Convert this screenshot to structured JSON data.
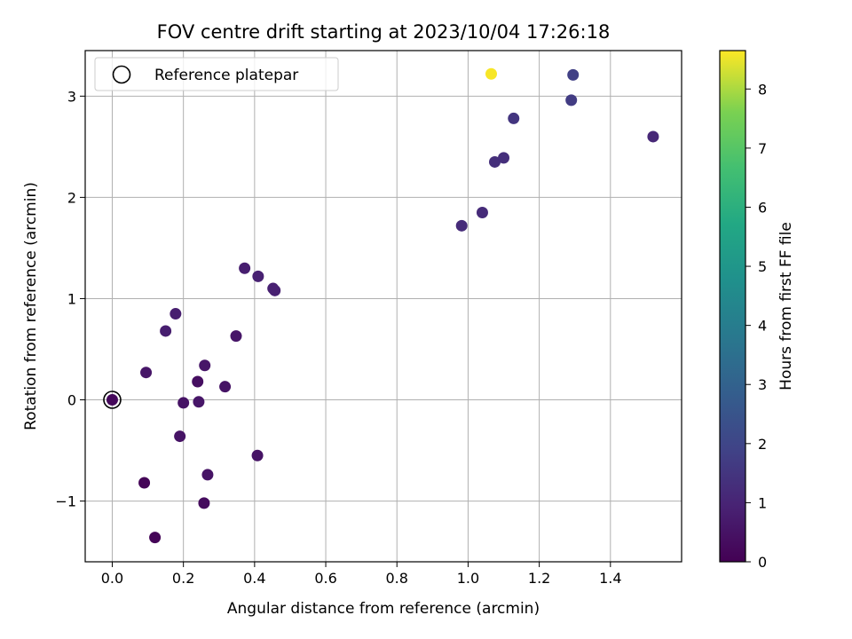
{
  "chart_data": {
    "type": "scatter",
    "title": "FOV centre drift starting at 2023/10/04 17:26:18",
    "xlabel": "Angular distance from reference (arcmin)",
    "ylabel": "Rotation from reference (arcmin)",
    "xlim": [
      -0.076,
      1.6
    ],
    "ylim": [
      -1.6,
      3.45
    ],
    "xticks": [
      0.0,
      0.2,
      0.4,
      0.6,
      0.8,
      1.0,
      1.2,
      1.4
    ],
    "xtick_labels": [
      "0.0",
      "0.2",
      "0.4",
      "0.6",
      "0.8",
      "1.0",
      "1.2",
      "1.4"
    ],
    "yticks": [
      -1,
      0,
      1,
      2,
      3
    ],
    "ytick_labels": [
      "−1",
      "0",
      "1",
      "2",
      "3"
    ],
    "grid": true,
    "legend": {
      "position": "top-left",
      "entries": [
        "Reference platepar"
      ]
    },
    "colorbar": {
      "label": "Hours from first FF file",
      "colormap": "viridis",
      "range": [
        0,
        8.65
      ],
      "ticks": [
        0,
        1,
        2,
        3,
        4,
        5,
        6,
        7,
        8
      ],
      "tick_labels": [
        "0",
        "1",
        "2",
        "3",
        "4",
        "5",
        "6",
        "7",
        "8"
      ]
    },
    "reference": {
      "x": 0.0,
      "y": 0.0
    },
    "points": [
      {
        "x": 0.0,
        "y": 0.0,
        "c": 0.2
      },
      {
        "x": 0.09,
        "y": -0.82,
        "c": 0.1
      },
      {
        "x": 0.12,
        "y": -1.36,
        "c": 0.1
      },
      {
        "x": 0.095,
        "y": 0.27,
        "c": 0.6
      },
      {
        "x": 0.15,
        "y": 0.68,
        "c": 0.8
      },
      {
        "x": 0.178,
        "y": 0.85,
        "c": 0.8
      },
      {
        "x": 0.19,
        "y": -0.36,
        "c": 0.5
      },
      {
        "x": 0.2,
        "y": -0.03,
        "c": 0.5
      },
      {
        "x": 0.24,
        "y": 0.18,
        "c": 0.4
      },
      {
        "x": 0.243,
        "y": -0.02,
        "c": 0.6
      },
      {
        "x": 0.26,
        "y": 0.34,
        "c": 0.6
      },
      {
        "x": 0.258,
        "y": -1.02,
        "c": 0.3
      },
      {
        "x": 0.268,
        "y": -0.74,
        "c": 0.5
      },
      {
        "x": 0.317,
        "y": 0.13,
        "c": 0.5
      },
      {
        "x": 0.348,
        "y": 0.63,
        "c": 0.6
      },
      {
        "x": 0.372,
        "y": 1.3,
        "c": 0.8
      },
      {
        "x": 0.408,
        "y": -0.55,
        "c": 0.5
      },
      {
        "x": 0.41,
        "y": 1.22,
        "c": 0.9
      },
      {
        "x": 0.452,
        "y": 1.1,
        "c": 0.9
      },
      {
        "x": 0.457,
        "y": 1.08,
        "c": 0.9
      },
      {
        "x": 0.982,
        "y": 1.72,
        "c": 1.2
      },
      {
        "x": 1.04,
        "y": 1.85,
        "c": 1.2
      },
      {
        "x": 1.075,
        "y": 2.35,
        "c": 1.3
      },
      {
        "x": 1.1,
        "y": 2.39,
        "c": 1.3
      },
      {
        "x": 1.128,
        "y": 2.78,
        "c": 1.5
      },
      {
        "x": 1.29,
        "y": 2.96,
        "c": 1.7
      },
      {
        "x": 1.295,
        "y": 3.21,
        "c": 1.8
      },
      {
        "x": 1.52,
        "y": 2.6,
        "c": 1.1
      },
      {
        "x": 1.065,
        "y": 3.22,
        "c": 8.6
      }
    ]
  }
}
